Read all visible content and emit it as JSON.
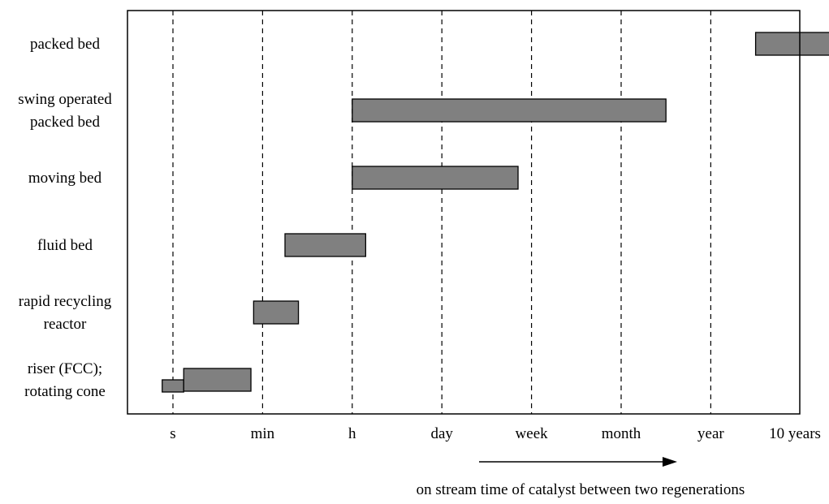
{
  "chart_data": {
    "type": "bar",
    "orientation": "horizontal-range",
    "title": "",
    "xlabel": "on stream time of catalyst between two regenerations",
    "ylabel": "",
    "x_scale": "log (ordinal time units)",
    "x_ticks": [
      "s",
      "min",
      "h",
      "day",
      "week",
      "month",
      "year",
      "10 years"
    ],
    "categories": [
      [
        "packed bed"
      ],
      [
        "swing operated",
        "packed bed"
      ],
      [
        "moving bed"
      ],
      [
        "fluid bed"
      ],
      [
        "rapid recycling",
        "reactor"
      ],
      [
        "riser (FCC);",
        "rotating cone"
      ]
    ],
    "ranges": [
      [
        [
          6.5,
          7.9
        ]
      ],
      [
        [
          2.0,
          5.5
        ]
      ],
      [
        [
          2.0,
          3.85
        ]
      ],
      [
        [
          1.25,
          2.15
        ]
      ],
      [
        [
          0.9,
          1.4
        ]
      ],
      [
        [
          -0.12,
          0.12
        ],
        [
          0.12,
          0.87
        ]
      ]
    ],
    "x_range": [
      -0.5,
      7.9
    ],
    "grid": "vertical dashed lines at tick positions",
    "legend": "none",
    "colors": {
      "bar_fill": "#808080",
      "bar_stroke": "#000000",
      "grid": "#000000",
      "axis": "#000000"
    }
  }
}
